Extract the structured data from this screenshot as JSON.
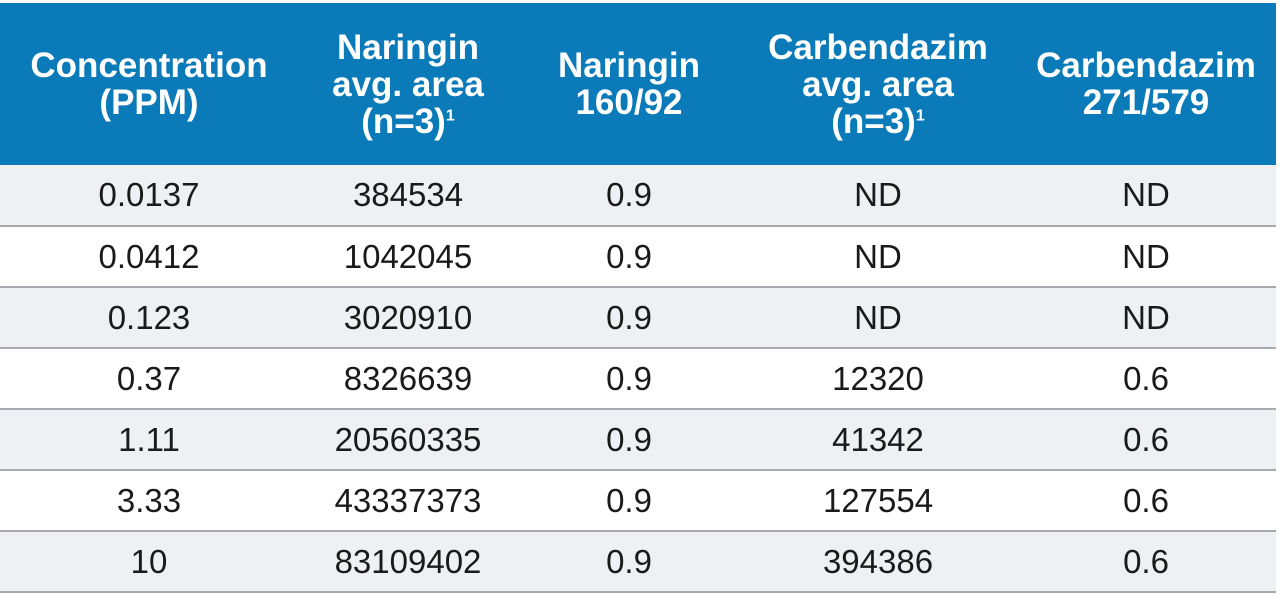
{
  "table": {
    "headers": [
      {
        "lines": [
          "Concentration",
          "(PPM)"
        ],
        "sup": ""
      },
      {
        "lines": [
          "Naringin",
          "avg. area",
          "(n=3)"
        ],
        "sup": "1"
      },
      {
        "lines": [
          "Naringin",
          "160/92"
        ],
        "sup": ""
      },
      {
        "lines": [
          "Carbendazim",
          "avg. area",
          "(n=3)"
        ],
        "sup": "1"
      },
      {
        "lines": [
          "Carbendazim",
          "271/579"
        ],
        "sup": ""
      }
    ],
    "rows": [
      [
        "0.0137",
        "384534",
        "0.9",
        "ND",
        "ND"
      ],
      [
        "0.0412",
        "1042045",
        "0.9",
        "ND",
        "ND"
      ],
      [
        "0.123",
        "3020910",
        "0.9",
        "ND",
        "ND"
      ],
      [
        "0.37",
        "8326639",
        "0.9",
        "12320",
        "0.6"
      ],
      [
        "1.11",
        "20560335",
        "0.9",
        "41342",
        "0.6"
      ],
      [
        "3.33",
        "43337373",
        "0.9",
        "127554",
        "0.6"
      ],
      [
        "10",
        "83109402",
        "0.9",
        "394386",
        "0.6"
      ]
    ]
  },
  "colors": {
    "header_bg": "#0a7ab8",
    "header_text": "#ffffff",
    "stripe": "#eef0f4",
    "row_divider": "#a8aab0"
  }
}
